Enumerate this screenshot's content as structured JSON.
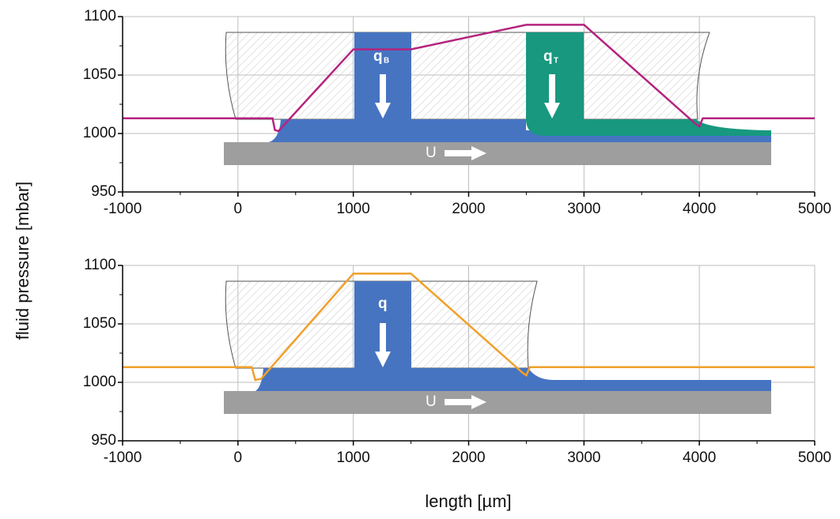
{
  "chart_data": [
    {
      "type": "line",
      "x": [
        -1000,
        300,
        320,
        350,
        1000,
        1500,
        2500,
        3000,
        3970,
        4000,
        4030,
        5000
      ],
      "series": [
        {
          "color": "#b5237f",
          "values": [
            1013,
            1013,
            1003,
            1002,
            1072,
            1072,
            1093,
            1093,
            1008,
            1006,
            1013,
            1013
          ]
        }
      ],
      "xlim": [
        -1000,
        5000
      ],
      "xticks": [
        -1000,
        0,
        1000,
        2000,
        3000,
        4000,
        5000
      ],
      "ylim": [
        950,
        1100
      ],
      "yticks": [
        950,
        1000,
        1050,
        1100
      ],
      "grid": true,
      "ylabel": "fluid pressure [mbar]",
      "annotations": [
        {
          "text": "q",
          "sub": "B"
        },
        {
          "text": "q",
          "sub": "T"
        },
        {
          "text": "U"
        }
      ]
    },
    {
      "type": "line",
      "x": [
        -1000,
        120,
        150,
        200,
        1000,
        1500,
        2470,
        2500,
        2530,
        5000
      ],
      "series": [
        {
          "color": "#f0a02a",
          "values": [
            1013,
            1013,
            1002,
            1003,
            1093,
            1093,
            1008,
            1006,
            1013,
            1013
          ]
        }
      ],
      "xlim": [
        -1000,
        5000
      ],
      "xticks": [
        -1000,
        0,
        1000,
        2000,
        3000,
        4000,
        5000
      ],
      "ylim": [
        950,
        1100
      ],
      "yticks": [
        950,
        1000,
        1050,
        1100
      ],
      "grid": true,
      "xlabel": "length [µm]",
      "annotations": [
        {
          "text": "q"
        },
        {
          "text": "U"
        }
      ]
    }
  ]
}
